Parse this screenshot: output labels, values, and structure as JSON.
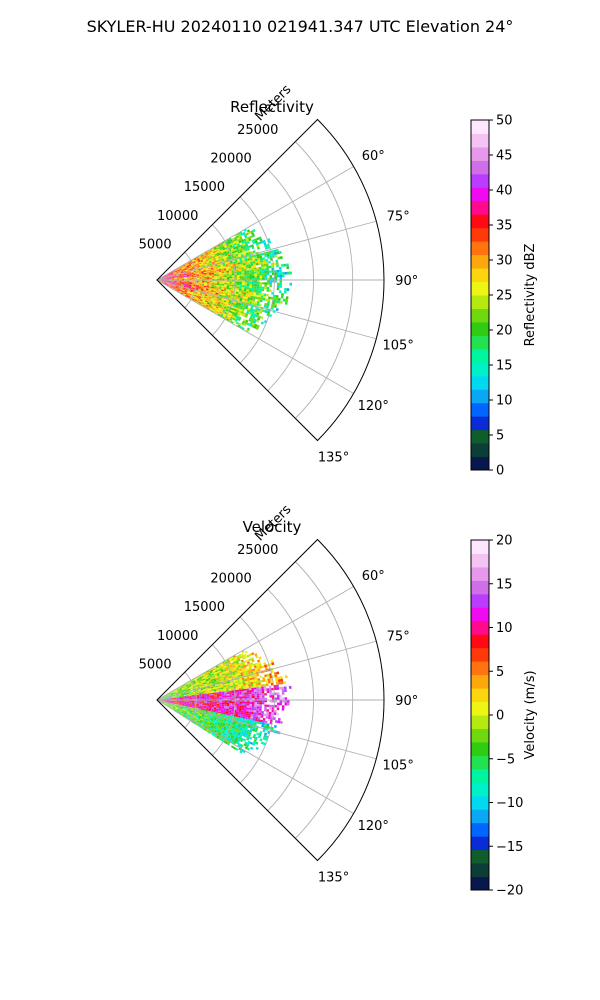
{
  "figure": {
    "title": "SKYLER-HU  20240110  021941.347 UTC Elevation 24°"
  },
  "colors": {
    "grid": "#b0b0b0",
    "frame": "#000000",
    "text": "#000000"
  },
  "chart_data": [
    {
      "type": "heatmap",
      "subtype": "polar-sector-ppi",
      "title": "Reflectivity",
      "radial_label": "Meters",
      "radial_ticks": [
        5000,
        10000,
        15000,
        20000,
        25000
      ],
      "radial_tick_labels": [
        "5000",
        "10000",
        "15000",
        "20000",
        "25000"
      ],
      "r_lim": [
        0,
        29000
      ],
      "theta_ticks_deg": [
        60,
        75,
        90,
        105,
        120,
        135
      ],
      "theta_tick_labels": [
        "60°",
        "75°",
        "90°",
        "105°",
        "120°",
        "135°"
      ],
      "theta_range_deg": [
        45,
        135
      ],
      "grid": true,
      "colorbar": {
        "label": "Reflectivity dBZ",
        "vmin": 0,
        "vmax": 50,
        "ticks": [
          0,
          5,
          10,
          15,
          20,
          25,
          30,
          35,
          40,
          45,
          50
        ],
        "tick_labels": [
          "0",
          "5",
          "10",
          "15",
          "20",
          "25",
          "30",
          "35",
          "40",
          "45",
          "50"
        ],
        "colors": [
          "#08184f",
          "#0c3d36",
          "#0f5c2c",
          "#0a2bd6",
          "#0066ff",
          "#0aa7f5",
          "#00d9f0",
          "#00f0c8",
          "#00f5a0",
          "#22e24f",
          "#30cc14",
          "#70d80f",
          "#b4ea10",
          "#eef514",
          "#fbd60c",
          "#fca70b",
          "#ff7410",
          "#ff3a0a",
          "#ff0a14",
          "#ff0a8a",
          "#ef0aef",
          "#b93cff",
          "#d06ee8",
          "#e699ec",
          "#f4c3f4",
          "#ffe6ff"
        ]
      },
      "field": {
        "range_max_m": 17000,
        "az_min_deg": 60,
        "az_max_deg": 120,
        "dominant_values_dbz": [
          15,
          18,
          22,
          26,
          30,
          35,
          40
        ],
        "description_values": "near-range 30-40 dBZ, mid-range 20-28 dBZ, far edge 13-18 dBZ"
      }
    },
    {
      "type": "heatmap",
      "subtype": "polar-sector-ppi",
      "title": "Velocity",
      "radial_label": "Meters",
      "radial_ticks": [
        5000,
        10000,
        15000,
        20000,
        25000
      ],
      "radial_tick_labels": [
        "5000",
        "10000",
        "15000",
        "20000",
        "25000"
      ],
      "r_lim": [
        0,
        29000
      ],
      "theta_ticks_deg": [
        60,
        75,
        90,
        105,
        120,
        135
      ],
      "theta_tick_labels": [
        "60°",
        "75°",
        "90°",
        "105°",
        "120°",
        "135°"
      ],
      "theta_range_deg": [
        45,
        135
      ],
      "grid": true,
      "colorbar": {
        "label": "Velocity (m/s)",
        "vmin": -20,
        "vmax": 20,
        "ticks": [
          -20,
          -15,
          -10,
          -5,
          0,
          5,
          10,
          15,
          20
        ],
        "tick_labels": [
          "−20",
          "−15",
          "−10",
          "−5",
          "0",
          "5",
          "10",
          "15",
          "20"
        ],
        "colors": [
          "#08184f",
          "#0c3d36",
          "#0f5c2c",
          "#0a2bd6",
          "#0066ff",
          "#0aa7f5",
          "#00d9f0",
          "#00f0c8",
          "#00f5a0",
          "#22e24f",
          "#30cc14",
          "#70d80f",
          "#b4ea10",
          "#eef514",
          "#fbd60c",
          "#fca70b",
          "#ff7410",
          "#ff3a0a",
          "#ff0a14",
          "#ff0a8a",
          "#ef0aef",
          "#b93cff",
          "#d06ee8",
          "#e699ec",
          "#f4c3f4",
          "#ffe6ff"
        ]
      },
      "field": {
        "range_max_m": 17000,
        "az_min_deg": 60,
        "az_max_deg": 122,
        "dominant_values_ms": [
          -8,
          -3,
          2,
          8,
          12,
          15
        ],
        "description_values": "north sector -5 to 2 m/s, central band +10 to +15 m/s, south sector -3 to -10 m/s"
      }
    }
  ]
}
